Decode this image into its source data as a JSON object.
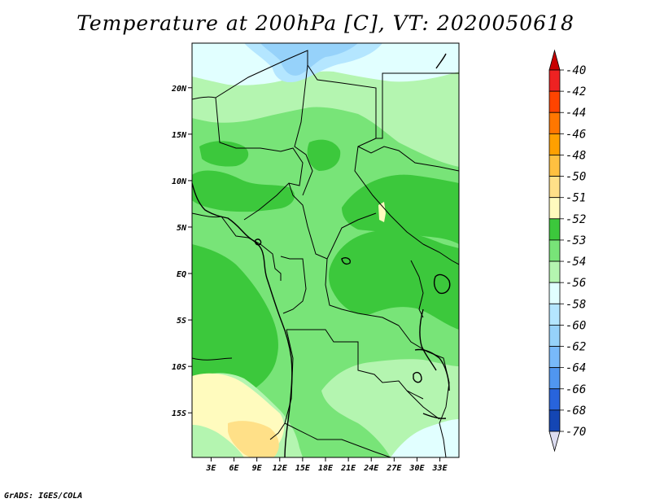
{
  "title": "Temperature at 200hPa [C], VT: 2020050618",
  "credit": "GrADS: IGES/COLA",
  "map": {
    "lon_ticks": [
      {
        "value": 3,
        "label": "3E"
      },
      {
        "value": 6,
        "label": "6E"
      },
      {
        "value": 9,
        "label": "9E"
      },
      {
        "value": 12,
        "label": "12E"
      },
      {
        "value": 15,
        "label": "15E"
      },
      {
        "value": 18,
        "label": "18E"
      },
      {
        "value": 21,
        "label": "21E"
      },
      {
        "value": 24,
        "label": "24E"
      },
      {
        "value": 27,
        "label": "27E"
      },
      {
        "value": 30,
        "label": "30E"
      },
      {
        "value": 33,
        "label": "33E"
      }
    ],
    "lat_ticks": [
      {
        "value": 20,
        "label": "20N"
      },
      {
        "value": 15,
        "label": "15N"
      },
      {
        "value": 10,
        "label": "10N"
      },
      {
        "value": 5,
        "label": "5N"
      },
      {
        "value": 0,
        "label": "EQ"
      },
      {
        "value": -5,
        "label": "5S"
      },
      {
        "value": -10,
        "label": "10S"
      },
      {
        "value": -15,
        "label": "15S"
      }
    ],
    "lon_range": [
      0.5,
      35.5
    ],
    "lat_range": [
      -19.8,
      24.8
    ]
  },
  "legend": {
    "items": [
      {
        "label": "-40",
        "color": "#ee2222"
      },
      {
        "label": "-42",
        "color": "#ff4400"
      },
      {
        "label": "-44",
        "color": "#ff7700"
      },
      {
        "label": "-46",
        "color": "#ffa000"
      },
      {
        "label": "-48",
        "color": "#ffc040"
      },
      {
        "label": "-50",
        "color": "#ffe088"
      },
      {
        "label": "-51",
        "color": "#fffbbe"
      },
      {
        "label": "-52",
        "color": "#3cc83c"
      },
      {
        "label": "-53",
        "color": "#78e478"
      },
      {
        "label": "-54",
        "color": "#b4f5b0"
      },
      {
        "label": "-56",
        "color": "#e1ffff"
      },
      {
        "label": "-58",
        "color": "#b4e6ff"
      },
      {
        "label": "-60",
        "color": "#96d2fa"
      },
      {
        "label": "-62",
        "color": "#78b9fa"
      },
      {
        "label": "-64",
        "color": "#5096f0"
      },
      {
        "label": "-66",
        "color": "#2864dc"
      },
      {
        "label": "-68",
        "color": "#1446b4"
      },
      {
        "label": "-70",
        "color": "#0a1e78"
      }
    ],
    "top_color": "#c80000",
    "bottom_color": "#dcdcf0"
  }
}
